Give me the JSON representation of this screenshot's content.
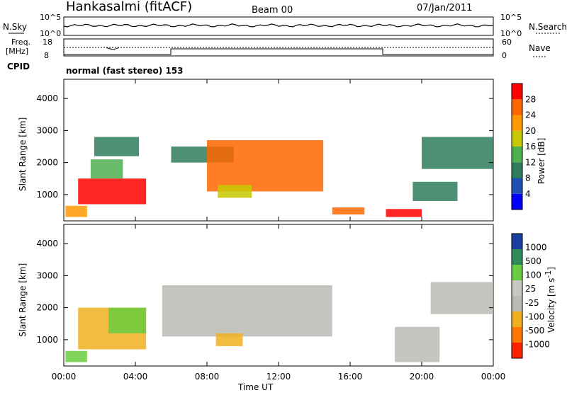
{
  "header": {
    "station": "Hankasalmi (fitACF)",
    "beam": "Beam 00",
    "date": "07/Jan/2011"
  },
  "noise_panel": {
    "left_label": "N.Sky",
    "right_label": "N.Search",
    "left_ticks": [
      "10^5",
      "10^0"
    ],
    "right_ticks": [
      "10^5",
      "10^0"
    ]
  },
  "freq_panel": {
    "left_label_1": "Freq.",
    "left_label_2": "[MHz]",
    "right_label": "Nave",
    "left_ticks": [
      "18",
      "8"
    ],
    "right_ticks": [
      "60",
      "0"
    ]
  },
  "cpid": {
    "label": "CPID",
    "mode_text": "normal (fast stereo) 153"
  },
  "power_panel": {
    "ylabel": "Slant Range [km]",
    "yticks": [
      "4000",
      "3000",
      "2000",
      "1000"
    ],
    "colorbar_title": "Power [dB]",
    "colorbar_ticks": [
      "28",
      "24",
      "20",
      "16",
      "12",
      "8",
      "4"
    ],
    "colors": [
      "#0000ff",
      "#1f4fb0",
      "#2e7d5a",
      "#4caf50",
      "#c8c800",
      "#ff9900",
      "#ff6600",
      "#ff0000"
    ]
  },
  "velocity_panel": {
    "ylabel": "Slant Range [km]",
    "yticks": [
      "4000",
      "3000",
      "2000",
      "1000"
    ],
    "colorbar_title": "Velocity [m s",
    "colorbar_title_sup": "-1",
    "colorbar_title_end": "]",
    "colorbar_ticks": [
      "1000",
      "500",
      "100",
      "25",
      "-25",
      "-100",
      "-500",
      "-1000"
    ],
    "colors": [
      "#1b3f9e",
      "#2e8b57",
      "#6acc40",
      "#c8c8c0",
      "#bbbbb4",
      "#f0b020",
      "#ff7700",
      "#ff2000"
    ]
  },
  "xaxis": {
    "label": "Time UT",
    "ticks": [
      "00:00",
      "04:00",
      "08:00",
      "12:00",
      "16:00",
      "20:00",
      "00:00"
    ]
  },
  "chart_data": {
    "type": "heatmap",
    "title": "Hankasalmi (fitACF) Beam 00 07/Jan/2011",
    "xlabel": "Time UT",
    "ylabel": "Slant Range [km]",
    "x_range_hours": [
      0,
      24
    ],
    "y_range_km": [
      180,
      4600
    ],
    "power_range_db": [
      0,
      32
    ],
    "velocity_range_ms": [
      -1000,
      1000
    ],
    "power_regions": [
      {
        "t0": 0.1,
        "t1": 1.3,
        "r0": 300,
        "r1": 650,
        "power": 20
      },
      {
        "t0": 0.8,
        "t1": 4.6,
        "r0": 700,
        "r1": 1500,
        "power": 28
      },
      {
        "t0": 1.5,
        "t1": 3.3,
        "r0": 1500,
        "r1": 2100,
        "power": 12
      },
      {
        "t0": 1.7,
        "t1": 4.2,
        "r0": 2200,
        "r1": 2800,
        "power": 8
      },
      {
        "t0": 6.0,
        "t1": 9.5,
        "r0": 2000,
        "r1": 2500,
        "power": 8
      },
      {
        "t0": 8.0,
        "t1": 14.5,
        "r0": 1100,
        "r1": 2700,
        "power": 24
      },
      {
        "t0": 8.6,
        "t1": 10.5,
        "r0": 900,
        "r1": 1300,
        "power": 18
      },
      {
        "t0": 15.0,
        "t1": 16.8,
        "r0": 380,
        "r1": 600,
        "power": 24
      },
      {
        "t0": 18.0,
        "t1": 20.0,
        "r0": 300,
        "r1": 550,
        "power": 28
      },
      {
        "t0": 19.5,
        "t1": 22.0,
        "r0": 800,
        "r1": 1400,
        "power": 10
      },
      {
        "t0": 20.0,
        "t1": 24.0,
        "r0": 1800,
        "r1": 2800,
        "power": 8
      }
    ],
    "velocity_regions": [
      {
        "t0": 0.1,
        "t1": 1.3,
        "r0": 300,
        "r1": 650,
        "velocity": 100
      },
      {
        "t0": 0.8,
        "t1": 4.6,
        "r0": 700,
        "r1": 2000,
        "velocity": -100
      },
      {
        "t0": 2.5,
        "t1": 4.6,
        "r0": 1200,
        "r1": 2000,
        "velocity": 300
      },
      {
        "t0": 5.5,
        "t1": 15.0,
        "r0": 1100,
        "r1": 2700,
        "velocity": 0
      },
      {
        "t0": 8.5,
        "t1": 10.0,
        "r0": 800,
        "r1": 1200,
        "velocity": -100
      },
      {
        "t0": 18.5,
        "t1": 21.0,
        "r0": 300,
        "r1": 1400,
        "velocity": 0
      },
      {
        "t0": 20.5,
        "t1": 24.0,
        "r0": 1800,
        "r1": 2800,
        "velocity": 0
      }
    ]
  }
}
